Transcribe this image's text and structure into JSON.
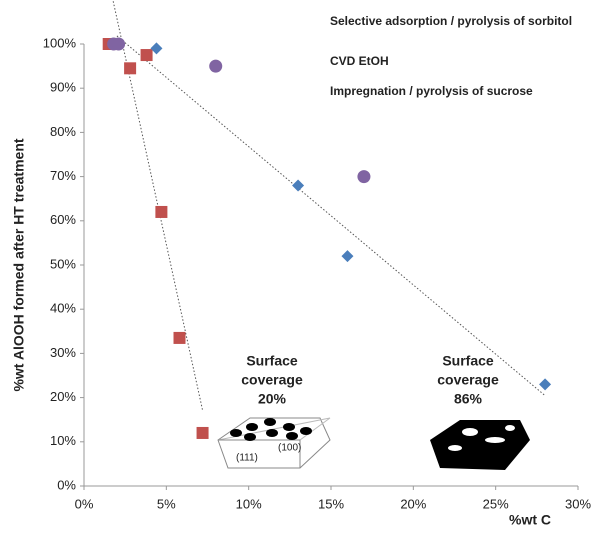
{
  "chart_data": {
    "type": "scatter",
    "x_label": "%wt C",
    "y_label": "%wt AlOOH formed after HT treatment",
    "xlim": [
      0,
      30
    ],
    "ylim": [
      0,
      100
    ],
    "xticks": [
      {
        "value": 0,
        "label": "0%"
      },
      {
        "value": 5,
        "label": "5%"
      },
      {
        "value": 10,
        "label": "10%"
      },
      {
        "value": 15,
        "label": "15%"
      },
      {
        "value": 20,
        "label": "20%"
      },
      {
        "value": 25,
        "label": "25%"
      },
      {
        "value": 30,
        "label": "30%"
      }
    ],
    "yticks": [
      {
        "value": 0,
        "label": "0%"
      },
      {
        "value": 10,
        "label": "10%"
      },
      {
        "value": 20,
        "label": "20%"
      },
      {
        "value": 30,
        "label": "30%"
      },
      {
        "value": 40,
        "label": "40%"
      },
      {
        "value": 50,
        "label": "50%"
      },
      {
        "value": 60,
        "label": "60%"
      },
      {
        "value": 70,
        "label": "70%"
      },
      {
        "value": 80,
        "label": "80%"
      },
      {
        "value": 90,
        "label": "90%"
      },
      {
        "value": 100,
        "label": "100%"
      }
    ],
    "series": [
      {
        "name": "Selective adsorption / pyrolysis of sorbitol",
        "color": "#c0504d",
        "marker": "square",
        "trendline": true,
        "x": [
          1.5,
          2.8,
          3.8,
          4.7,
          5.8,
          7.2
        ],
        "values": [
          100,
          94.5,
          97.5,
          62,
          33.5,
          12
        ]
      },
      {
        "name": "CVD EtOH",
        "color": "#4a7ebb",
        "marker": "diamond",
        "trendline": true,
        "x": [
          2.0,
          4.4,
          13,
          16,
          28
        ],
        "values": [
          100,
          99,
          68,
          52,
          23
        ]
      },
      {
        "name": "Impregnation / pyrolysis of sucrose",
        "color": "#8064a2",
        "marker": "circle",
        "trendline": false,
        "x": [
          1.8,
          2.1,
          8,
          17
        ],
        "values": [
          100,
          100,
          95,
          70
        ]
      }
    ],
    "annotations": [
      {
        "lines": [
          "Surface",
          "coverage",
          "20%"
        ],
        "color": "#c0282d"
      },
      {
        "lines": [
          "Surface",
          "coverage",
          "86%"
        ],
        "color": "#2f86c8"
      }
    ],
    "facet_labels": [
      "(111)",
      "(100)"
    ]
  }
}
